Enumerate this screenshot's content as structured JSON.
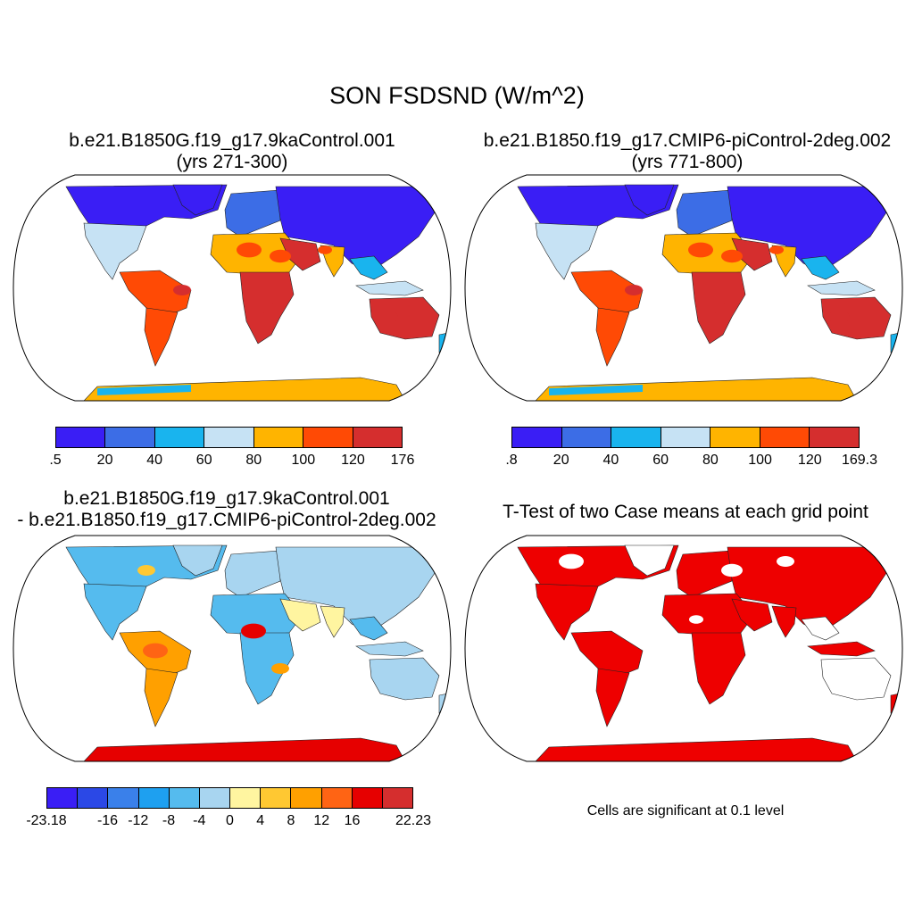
{
  "title": "SON FSDSND (W/m^2)",
  "panels": {
    "case1": {
      "title_line1": "b.e21.B1850G.f19_g17.9kaControl.001",
      "title_line2": "(yrs 271-300)",
      "colorbar": {
        "colors": [
          "#3a1ef5",
          "#3c6de6",
          "#19b4ee",
          "#c6e2f4",
          "#ffb400",
          "#ff4a05",
          "#d52e2e"
        ],
        "labels": [
          ".5",
          "20",
          "40",
          "60",
          "80",
          "100",
          "120",
          "176"
        ]
      }
    },
    "case2": {
      "title_line1": "b.e21.B1850.f19_g17.CMIP6-piControl-2deg.002",
      "title_line2": "(yrs 771-800)",
      "colorbar": {
        "colors": [
          "#3a1ef5",
          "#3c6de6",
          "#19b4ee",
          "#c6e2f4",
          "#ffb400",
          "#ff4a05",
          "#d52e2e"
        ],
        "labels": [
          ".8",
          "20",
          "40",
          "60",
          "80",
          "100",
          "120",
          "169.3"
        ]
      }
    },
    "diff": {
      "title_line1": "b.e21.B1850G.f19_g17.9kaControl.001",
      "title_line2": "- b.e21.B1850.f19_g17.CMIP6-piControl-2deg.002",
      "colorbar": {
        "colors": [
          "#3a1ef5",
          "#2b48e6",
          "#3a80ea",
          "#1ea0f0",
          "#55bbee",
          "#a8d5f0",
          "#fff5a0",
          "#ffc832",
          "#ffa000",
          "#ff6414",
          "#e60000",
          "#d52e2e"
        ],
        "labels": [
          "-23.18",
          "-16",
          "-12",
          "-8",
          "-4",
          "0",
          "4",
          "8",
          "12",
          "16",
          "22.23"
        ]
      }
    },
    "ttest": {
      "title": "T-Test of two Case means at each grid point",
      "note": "Cells are significant at 0.1 level",
      "color": "#ee0000"
    }
  }
}
